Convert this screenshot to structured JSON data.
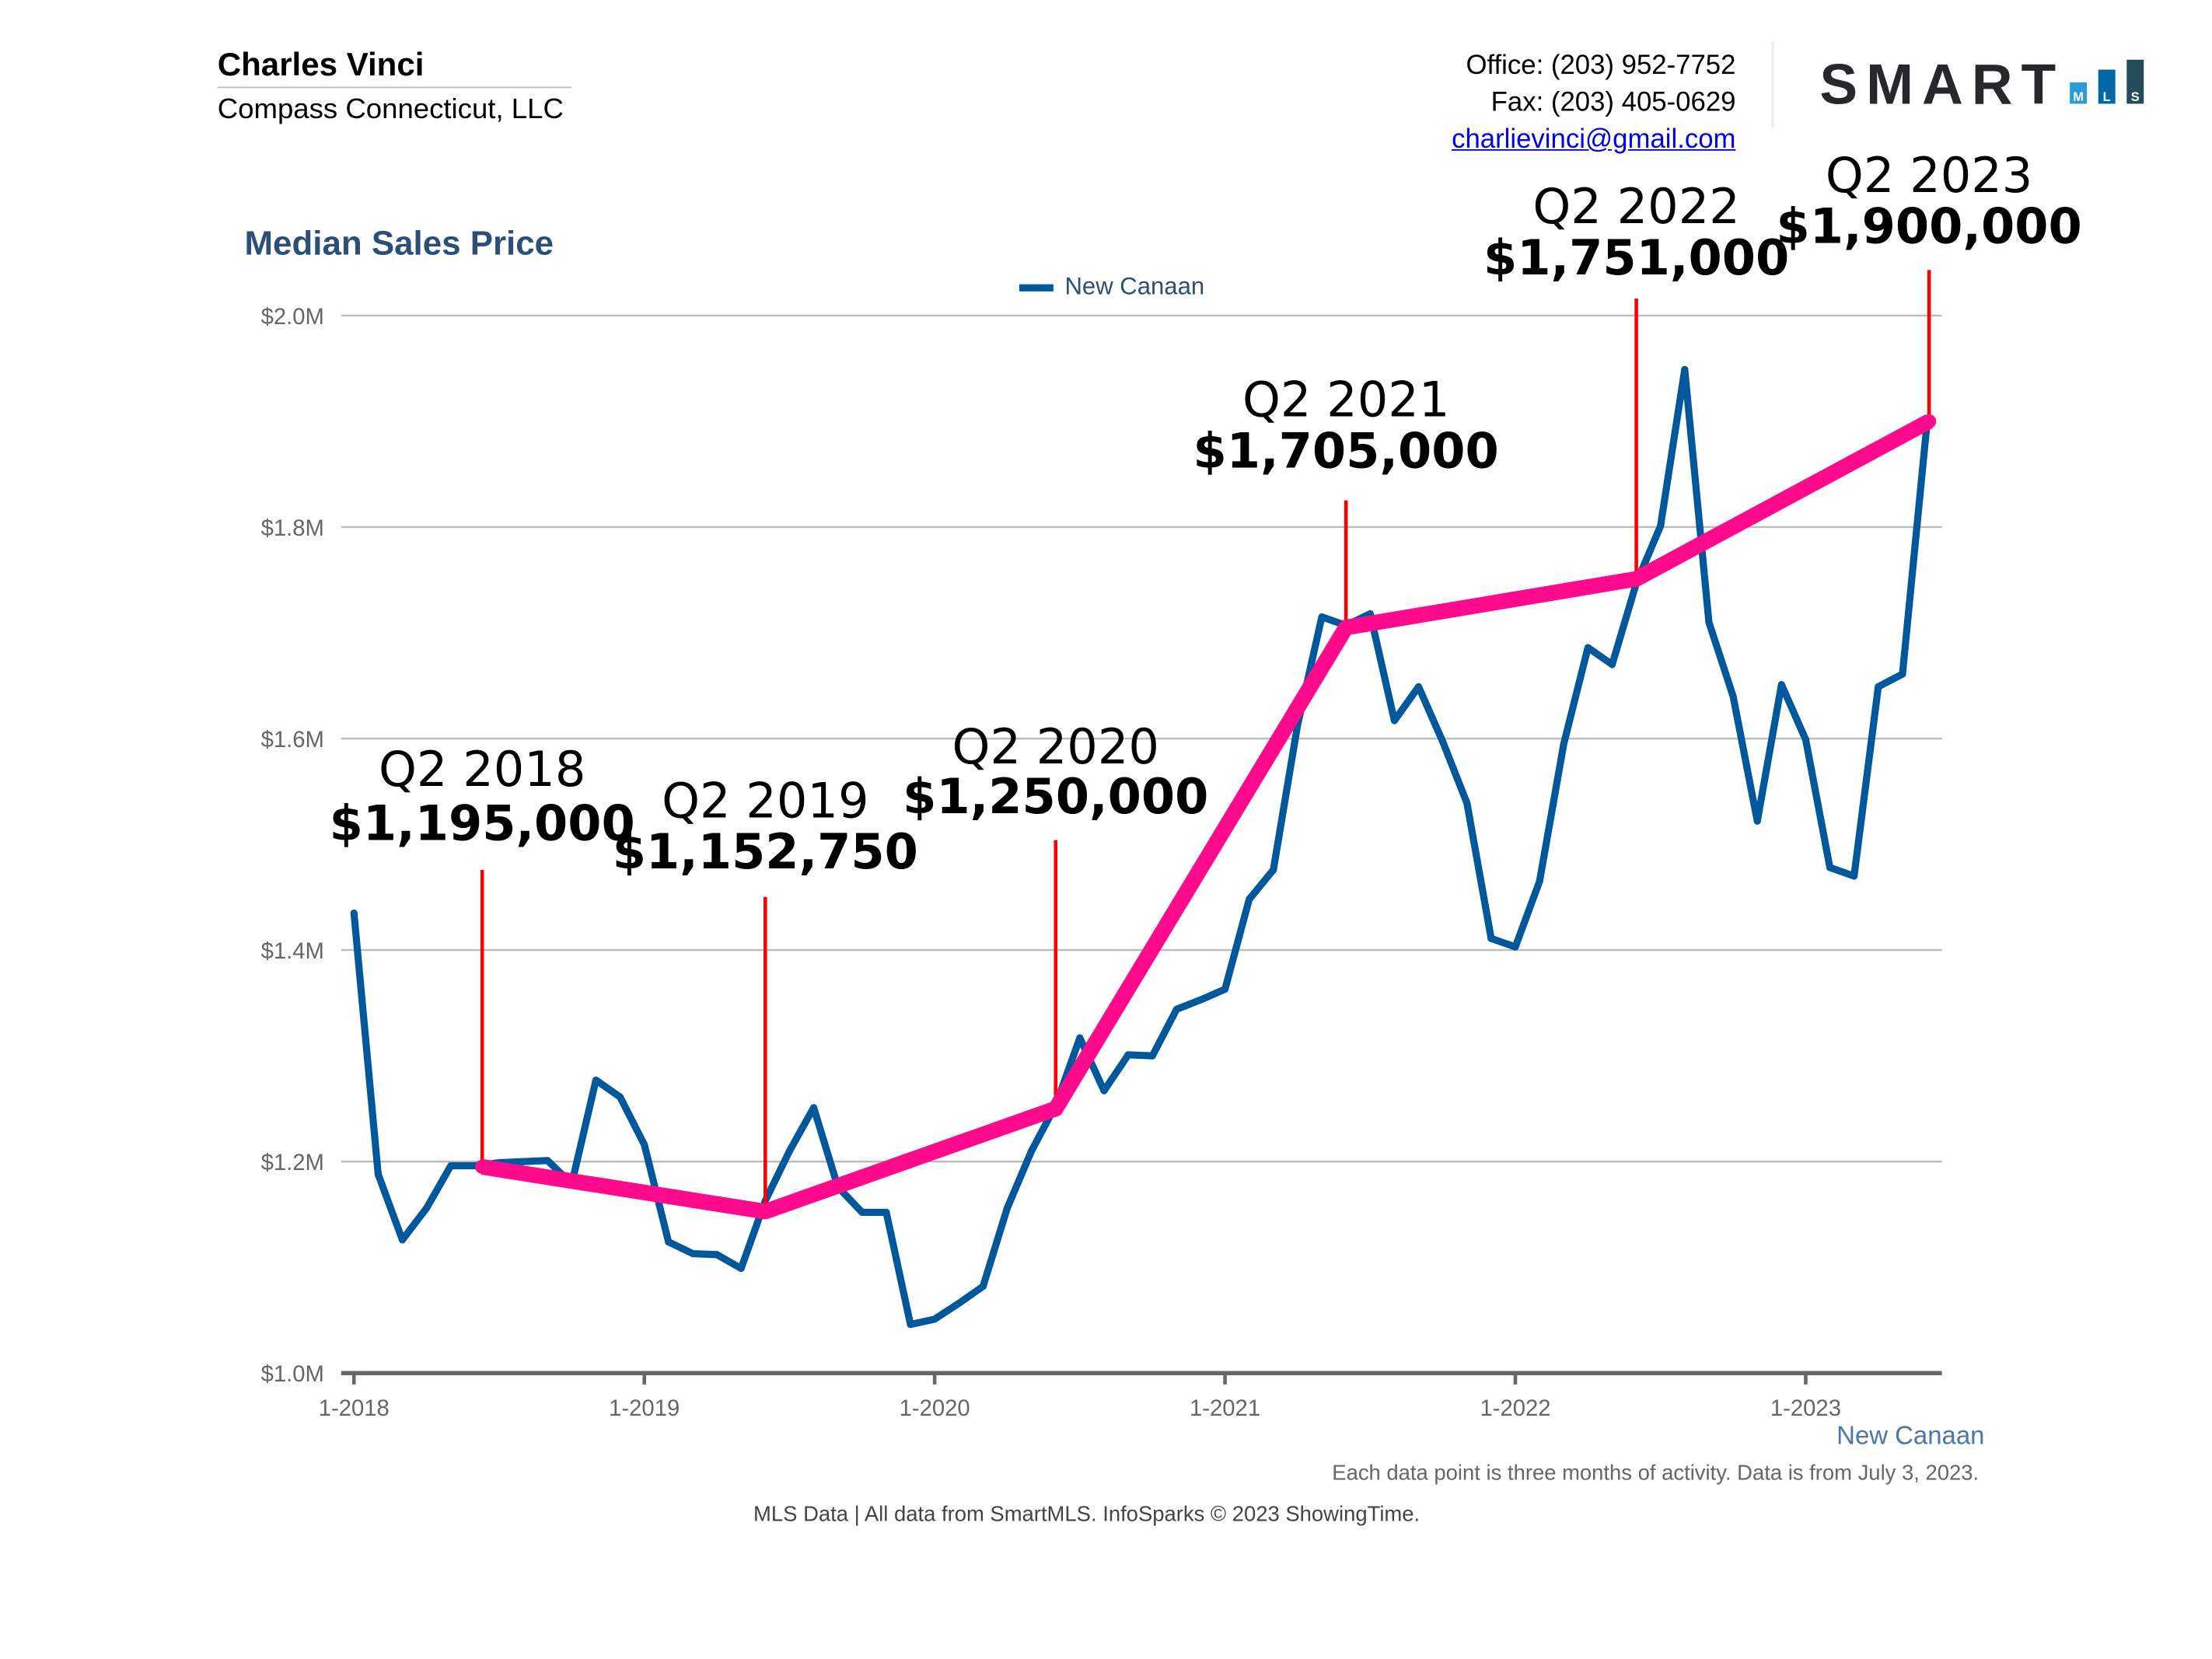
{
  "header": {
    "agent_name": "Charles Vinci",
    "company": "Compass Connecticut, LLC",
    "office": "Office: (203) 952-7752",
    "fax": "Fax: (203) 405-0629",
    "email": "charlievinci@gmail.com",
    "logo_text": "SMART",
    "logo_letters": [
      "M",
      "L",
      "S"
    ],
    "logo_colors": [
      "#2a9ad9",
      "#0068a8",
      "#234d5b"
    ]
  },
  "footer": {
    "city": "New Canaan",
    "note": "Each data point is three months of activity. Data is from July 3, 2023.",
    "source": "MLS Data | All data from SmartMLS. InfoSparks © 2023 ShowingTime."
  },
  "chart_data": {
    "type": "line",
    "title": "Median Sales Price",
    "xlabel": "",
    "ylabel": "",
    "ylim": [
      1.0,
      2.0
    ],
    "y_unit": "$M",
    "yticks": [
      1.0,
      1.2,
      1.4,
      1.6,
      1.8,
      2.0
    ],
    "ytick_labels": [
      "$1.0M",
      "$1.2M",
      "$1.4M",
      "$1.6M",
      "$1.8M",
      "$2.0M"
    ],
    "xtick_labels": [
      "1-2018",
      "1-2019",
      "1-2020",
      "1-2021",
      "1-2022",
      "1-2023"
    ],
    "grid": true,
    "legend": {
      "position": "top-center",
      "entries": [
        "New Canaan"
      ]
    },
    "x_start": "2018-01",
    "x_step": "month",
    "series": [
      {
        "name": "New Canaan",
        "color": "#00589c",
        "values": [
          1.435,
          1.188,
          1.126,
          1.156,
          1.196,
          1.196,
          1.199,
          1.2,
          1.201,
          1.179,
          1.277,
          1.261,
          1.216,
          1.124,
          1.113,
          1.112,
          1.099,
          1.163,
          1.21,
          1.251,
          1.176,
          1.152,
          1.152,
          1.046,
          1.051,
          1.066,
          1.082,
          1.156,
          1.21,
          1.253,
          1.317,
          1.267,
          1.301,
          1.3,
          1.344,
          1.353,
          1.363,
          1.448,
          1.476,
          1.613,
          1.715,
          1.707,
          1.718,
          1.617,
          1.649,
          1.597,
          1.539,
          1.411,
          1.403,
          1.465,
          1.595,
          1.686,
          1.67,
          1.747,
          1.801,
          1.949,
          1.71,
          1.64,
          1.522,
          1.651,
          1.599,
          1.478,
          1.47,
          1.649,
          1.661,
          1.895
        ]
      },
      {
        "name": "Q2 trend",
        "color": "#ff0a8c",
        "x_months": [
          5.3,
          17.0,
          29.0,
          41.0,
          53.0,
          65.1
        ],
        "values": [
          1.195,
          1.15275,
          1.25,
          1.705,
          1.751,
          1.9
        ]
      }
    ],
    "annotations": [
      {
        "label": "Q2 2018",
        "value": "$1,195,000"
      },
      {
        "label": "Q2 2019",
        "value": "$1,152,750"
      },
      {
        "label": "Q2 2020",
        "value": "$1,250,000"
      },
      {
        "label": "Q2 2021",
        "value": "$1,705,000"
      },
      {
        "label": "Q2 2022",
        "value": "$1,751,000"
      },
      {
        "label": "Q2 2023",
        "value": "$1,900,000"
      }
    ],
    "annotation_line_color": "#ff0000"
  }
}
